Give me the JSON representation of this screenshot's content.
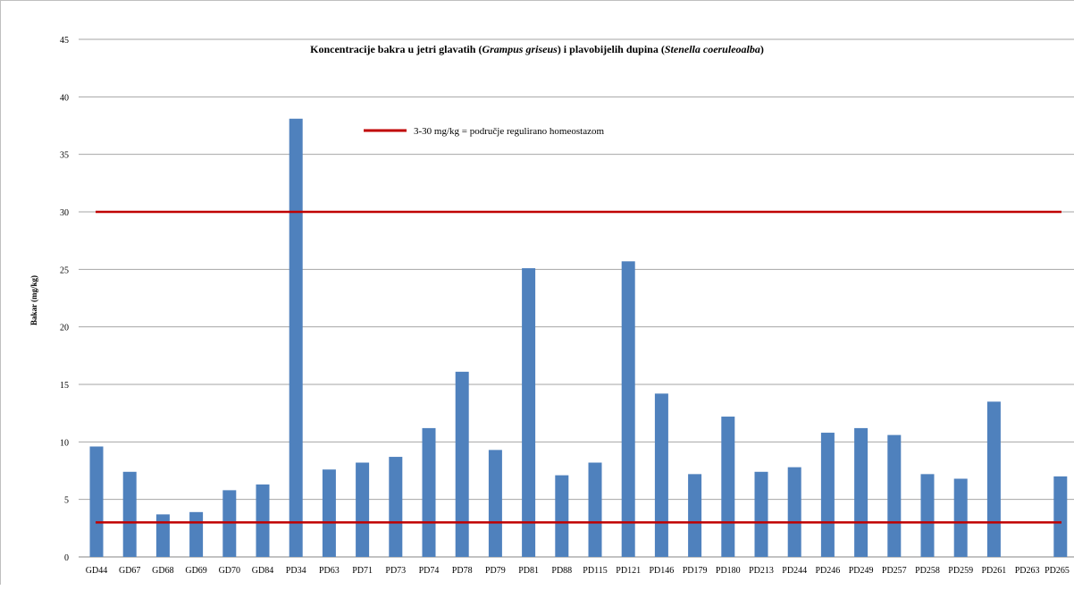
{
  "chart_data": {
    "type": "bar",
    "title": {
      "part1": "Koncentracije bakra u jetri glavatih (",
      "italic1": "Grampus griseus",
      "part2": ") i plavobijelih dupina (",
      "italic2": "Stenella coeruleoalba",
      "part3": ")"
    },
    "xlabel": "",
    "ylabel": "Bakar (mg/kg)",
    "ylim": [
      0,
      45
    ],
    "yticks": [
      0,
      5,
      10,
      15,
      20,
      25,
      30,
      35,
      40,
      45
    ],
    "grid": true,
    "categories": [
      "GD44",
      "GD67",
      "GD68",
      "GD69",
      "GD70",
      "GD84",
      "PD34",
      "PD63",
      "PD71",
      "PD73",
      "PD74",
      "PD78",
      "PD79",
      "PD81",
      "PD88",
      "PD115",
      "PD121",
      "PD146",
      "PD179",
      "PD180",
      "PD213",
      "PD244",
      "PD246",
      "PD249",
      "PD257",
      "PD258",
      "PD259",
      "PD261",
      "PD263",
      "PD265"
    ],
    "values": [
      9.6,
      7.4,
      3.7,
      3.9,
      5.8,
      6.3,
      38.1,
      7.6,
      8.2,
      8.7,
      11.2,
      16.1,
      9.3,
      25.1,
      7.1,
      8.2,
      25.7,
      14.2,
      7.2,
      12.2,
      7.4,
      7.8,
      10.8,
      11.2,
      10.6,
      7.2,
      6.8,
      13.5,
      0,
      7.0
    ],
    "bar_color": "#4f81bd",
    "reference_lines": [
      {
        "value": 30,
        "color": "#c00000"
      },
      {
        "value": 3,
        "color": "#c00000"
      }
    ],
    "legend": {
      "label": "3-30 mg/kg = područje regulirano homeostazom",
      "color": "#c00000",
      "placement": "top-center"
    }
  }
}
